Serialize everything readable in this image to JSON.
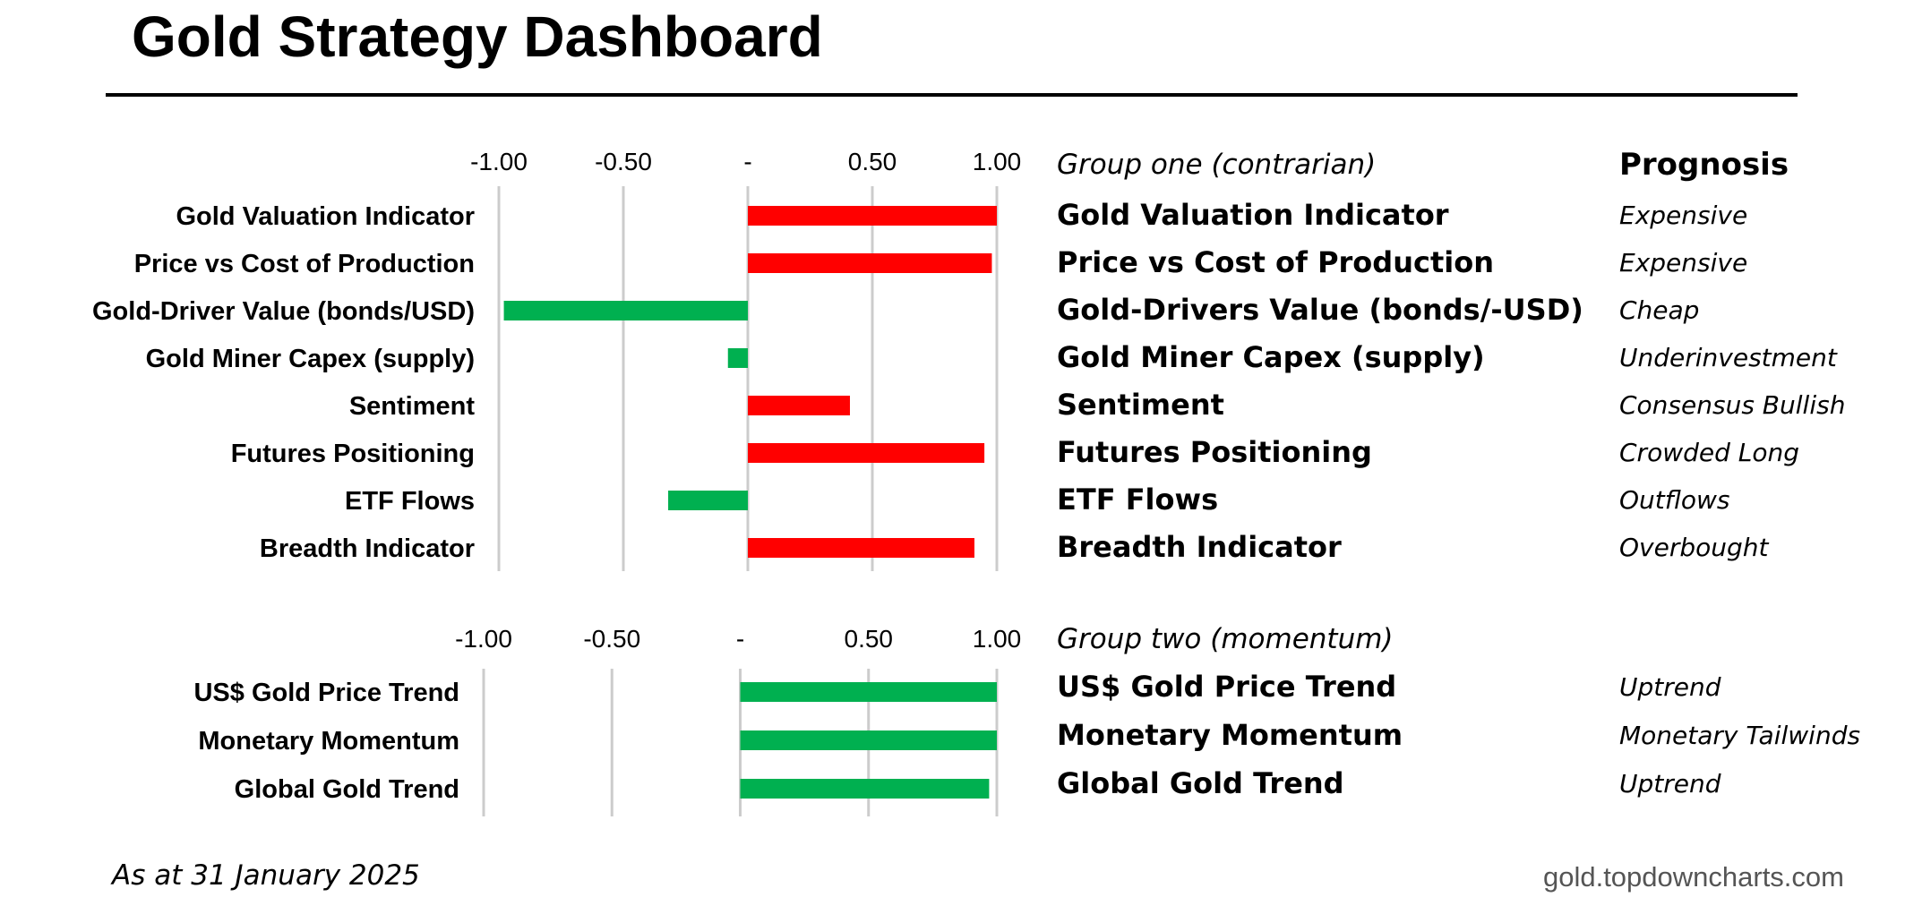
{
  "title": "Gold Strategy Dashboard",
  "colors": {
    "positive": "#ff0000",
    "negative": "#00b050",
    "momentum": "#00b050",
    "grid": "#cccccc"
  },
  "prognosis_header": "Prognosis",
  "footer": {
    "date": "As at 31 January 2025",
    "source": "gold.topdowncharts.com"
  },
  "chart_data": [
    {
      "type": "bar",
      "orientation": "horizontal",
      "title": "Group one (contrarian)",
      "xlim": [
        -1.0,
        1.0
      ],
      "grid": true,
      "ticks": [
        "-1.00",
        "-0.50",
        "-",
        "0.50",
        "1.00"
      ],
      "tick_values": [
        -1.0,
        -0.5,
        0,
        0.5,
        1.0
      ],
      "categories": [
        "Gold Valuation Indicator",
        "Price vs Cost of Production",
        "Gold-Driver Value (bonds/USD)",
        "Gold Miner Capex (supply)",
        "Sentiment",
        "Futures Positioning",
        "ETF Flows",
        "Breadth Indicator"
      ],
      "values": [
        1.0,
        0.98,
        -0.98,
        -0.08,
        0.41,
        0.95,
        -0.32,
        0.91
      ],
      "bar_colors": [
        "#ff0000",
        "#ff0000",
        "#00b050",
        "#00b050",
        "#ff0000",
        "#ff0000",
        "#00b050",
        "#ff0000"
      ],
      "indicators": [
        "Gold Valuation Indicator",
        "Price vs Cost of Production",
        "Gold-Drivers Value (bonds/-USD)",
        "Gold Miner Capex (supply)",
        "Sentiment",
        "Futures Positioning",
        "ETF Flows",
        "Breadth Indicator"
      ],
      "prognosis": [
        "Expensive",
        "Expensive",
        "Cheap",
        "Underinvestment",
        "Consensus Bullish",
        "Crowded Long",
        "Outflows",
        "Overbought"
      ]
    },
    {
      "type": "bar",
      "orientation": "horizontal",
      "title": "Group two (momentum)",
      "xlim": [
        -1.0,
        1.0
      ],
      "grid": true,
      "ticks": [
        "-1.00",
        "-0.50",
        "-",
        "0.50",
        "1.00"
      ],
      "tick_values": [
        -1.0,
        -0.5,
        0,
        0.5,
        1.0
      ],
      "categories": [
        "US$ Gold Price Trend",
        "Monetary Momentum",
        "Global Gold Trend"
      ],
      "values": [
        1.0,
        1.0,
        0.97
      ],
      "bar_colors": [
        "#00b050",
        "#00b050",
        "#00b050"
      ],
      "indicators": [
        "US$ Gold Price Trend",
        "Monetary Momentum",
        "Global Gold Trend"
      ],
      "prognosis": [
        "Uptrend",
        "Monetary Tailwinds",
        "Uptrend"
      ]
    }
  ]
}
